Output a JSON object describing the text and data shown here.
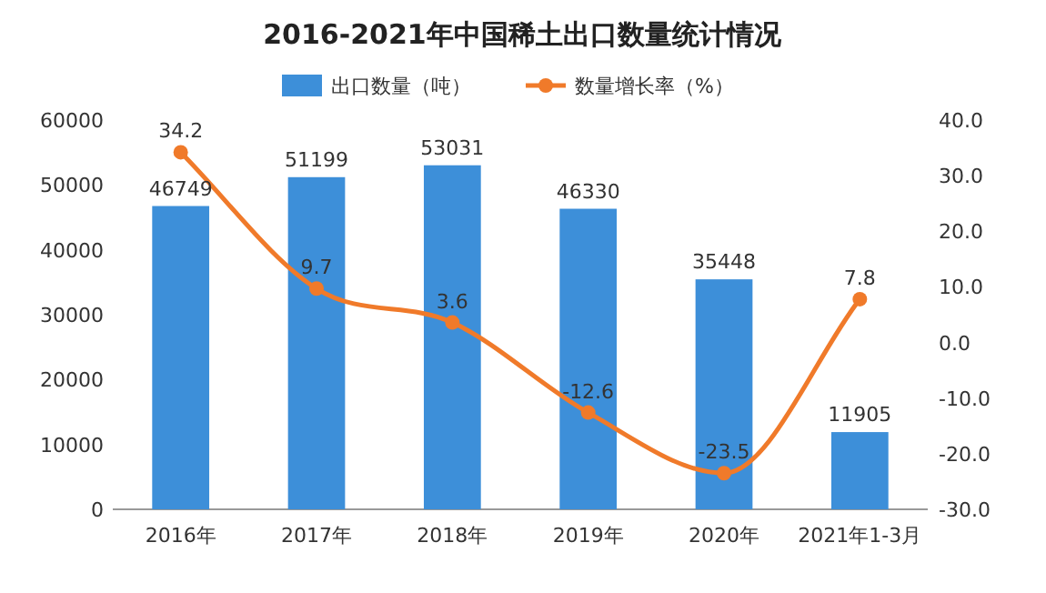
{
  "chart_data": {
    "type": "bar",
    "title": "2016-2021年中国稀土出口数量统计情况",
    "categories": [
      "2016年",
      "2017年",
      "2018年",
      "2019年",
      "2020年",
      "2021年1-3月"
    ],
    "series": [
      {
        "name": "出口数量（吨）",
        "color": "#3d8fd9",
        "values": [
          46749,
          51199,
          53031,
          46330,
          35448,
          11905
        ]
      },
      {
        "name": "数量增长率（%）",
        "type": "line",
        "axis": "y2",
        "marker": "circle",
        "color": "#f07a2a",
        "values": [
          34.2,
          9.7,
          3.6,
          -12.6,
          -23.5,
          7.8
        ]
      }
    ],
    "ylim": [
      0,
      60000
    ],
    "yticks": [
      0,
      10000,
      20000,
      30000,
      40000,
      50000,
      60000
    ],
    "y2lim": [
      -30,
      40
    ],
    "y2ticks": [
      {
        "value": -30,
        "label": "-30.0"
      },
      {
        "value": -20,
        "label": "-20.0"
      },
      {
        "value": -10,
        "label": "-10.0"
      },
      {
        "value": 0,
        "label": "0.0"
      },
      {
        "value": 10,
        "label": "10.0"
      },
      {
        "value": 20,
        "label": "20.0"
      },
      {
        "value": 30,
        "label": "30.0"
      },
      {
        "value": 40,
        "label": "40.0"
      }
    ],
    "legend": "top",
    "data_labels": true
  }
}
